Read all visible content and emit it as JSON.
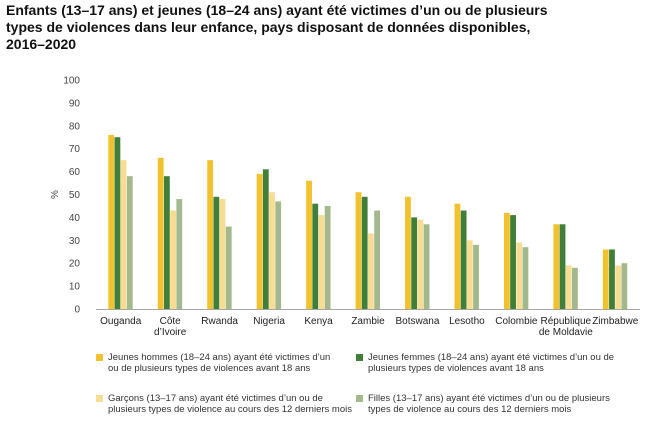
{
  "title_lines": [
    "Enfants (13–17 ans) et jeunes (18–24 ans) ayant été victimes d’un ou de plusieurs",
    "types de violences dans leur enfance, pays disposant de données disponibles,",
    "2016–2020"
  ],
  "chart_data": {
    "type": "bar",
    "title": "Enfants (13–17 ans) et jeunes (18–24 ans) ayant été victimes d’un ou de plusieurs types de violences dans leur enfance, pays disposant de données disponibles, 2016–2020",
    "xlabel": "",
    "ylabel": "%",
    "ylim": [
      0,
      100
    ],
    "yticks": [
      0,
      10,
      20,
      30,
      40,
      50,
      60,
      70,
      80,
      90,
      100
    ],
    "grid": false,
    "legend_position": "bottom",
    "categories": [
      [
        "Ouganda"
      ],
      [
        "Côte",
        "d’Ivoire"
      ],
      [
        "Rwanda"
      ],
      [
        "Nigeria"
      ],
      [
        "Kenya"
      ],
      [
        "Zambie"
      ],
      [
        "Botswana"
      ],
      [
        "Lesotho"
      ],
      [
        "Colombie"
      ],
      [
        "République",
        "de Moldavie"
      ],
      [
        "Zimbabwe"
      ]
    ],
    "series": [
      {
        "name": "Jeunes hommes (18–24 ans) ayant été victimes d’un ou de plusieurs types de violences avant 18 ans",
        "legend_lines": [
          "Jeunes hommes (18–24 ans) ayant été victimes d’un",
          "ou de plusieurs types de violences avant 18 ans"
        ],
        "color": "#F2C12E",
        "values": [
          76,
          66,
          65,
          59,
          56,
          51,
          49,
          46,
          42,
          37,
          26
        ]
      },
      {
        "name": "Jeunes femmes (18–24 ans) ayant été victimes d’un ou de plusieurs types de violences avant 18 ans",
        "legend_lines": [
          "Jeunes femmes (18–24 ans) ayant été victimes d’un ou de",
          "plusieurs types de violences avant 18 ans"
        ],
        "color": "#3F7F3A",
        "values": [
          75,
          58,
          49,
          61,
          46,
          49,
          40,
          43,
          41,
          37,
          26
        ]
      },
      {
        "name": "Garçons (13–17 ans) ayant été victimes d’un ou de plusieurs types de violence au cours des 12 derniers mois",
        "legend_lines": [
          "Garçons (13–17 ans) ayant été victimes d’un ou de",
          "plusieurs types de violence au cours des 12 derniers mois"
        ],
        "color": "#F7DC94",
        "values": [
          65,
          43,
          48,
          51,
          41,
          33,
          39,
          30,
          29,
          19,
          19
        ]
      },
      {
        "name": "Filles (13–17 ans) ayant été victimes d’un ou de plusieurs types de violence au cours des 12 derniers mois",
        "legend_lines": [
          "Filles (13–17 ans) ayant été victimes d’un ou de plusieurs",
          "types de violence au cours des 12 derniers mois"
        ],
        "color": "#A3B98D",
        "values": [
          58,
          48,
          36,
          47,
          45,
          43,
          37,
          28,
          27,
          18,
          20
        ]
      }
    ]
  }
}
